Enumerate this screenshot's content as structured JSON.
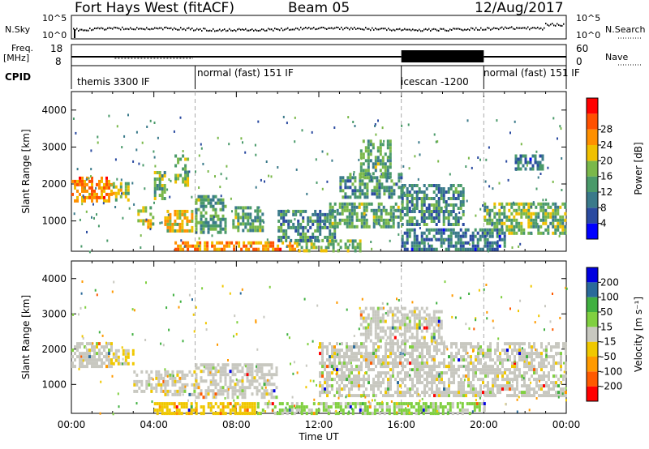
{
  "header": {
    "station": "Fort Hays West (fitACF)",
    "beam": "Beam 05",
    "date": "12/Aug/2017"
  },
  "side_labels": {
    "nsky": "N.Sky",
    "freq": "Freq.",
    "mhz": "[MHz]",
    "cpid": "CPID",
    "nsearch": "N.Search",
    "nave": "Nave"
  },
  "noise_panel": {
    "left_ticks": [
      "10^5",
      "10^0"
    ],
    "right_ticks": [
      "10^5",
      "10^0"
    ]
  },
  "freq_panel": {
    "left_ticks": [
      "18",
      "8"
    ],
    "right_ticks": [
      "60",
      "0"
    ]
  },
  "cpid_segments": [
    {
      "label": "themis 3300 IF",
      "start_hour": 0.0
    },
    {
      "label": "normal (fast) 151 IF",
      "start_hour": 6.0
    },
    {
      "label": "icescan -1200",
      "start_hour": 16.0
    },
    {
      "label": "normal (fast) 151 IF",
      "start_hour": 20.0
    }
  ],
  "time_axis": {
    "label": "Time UT",
    "ticks": [
      "00:00",
      "04:00",
      "08:00",
      "12:00",
      "16:00",
      "20:00",
      "00:00"
    ]
  },
  "colors": {
    "power": [
      "#0000ff",
      "#2a4aa0",
      "#3a7a8a",
      "#4a9a6a",
      "#7ab84a",
      "#f0c000",
      "#ff9000",
      "#ff5000",
      "#ff0000"
    ],
    "velocity": [
      "#ff0000",
      "#ff5a00",
      "#ff9a00",
      "#f0c800",
      "#c8c8c0",
      "#80d040",
      "#40b040",
      "#2a6a9a",
      "#0000e0"
    ]
  },
  "chart_data": [
    {
      "type": "heatmap",
      "title": "",
      "ylabel": "Slant Range [km]",
      "xlabel": "",
      "ylim": [
        180,
        4500
      ],
      "y_ticks": [
        "1000",
        "2000",
        "3000",
        "4000"
      ],
      "colorbar": {
        "label": "Power [dB]",
        "ticks": [
          "4",
          "8",
          "12",
          "16",
          "20",
          "24",
          "28"
        ],
        "range": [
          0,
          30
        ]
      },
      "regions": [
        {
          "t0": 0.0,
          "t1": 1.9,
          "r0": 1500,
          "r1": 2200,
          "val": 22
        },
        {
          "t0": 2.0,
          "t1": 2.8,
          "r0": 1600,
          "r1": 2050,
          "val": 16
        },
        {
          "t0": 3.2,
          "t1": 4.0,
          "r0": 800,
          "r1": 1400,
          "val": 18
        },
        {
          "t0": 4.0,
          "t1": 4.5,
          "r0": 1600,
          "r1": 2350,
          "val": 14
        },
        {
          "t0": 4.5,
          "t1": 5.8,
          "r0": 750,
          "r1": 1300,
          "val": 18
        },
        {
          "t0": 5.0,
          "t1": 5.6,
          "r0": 2000,
          "r1": 2800,
          "val": 14
        },
        {
          "t0": 6.0,
          "t1": 7.5,
          "r0": 700,
          "r1": 1700,
          "val": 12
        },
        {
          "t0": 7.8,
          "t1": 9.3,
          "r0": 700,
          "r1": 1400,
          "val": 12
        },
        {
          "t0": 5.0,
          "t1": 11.0,
          "r0": 200,
          "r1": 450,
          "val": 22
        },
        {
          "t0": 11.0,
          "t1": 14.0,
          "r0": 200,
          "r1": 500,
          "val": 14
        },
        {
          "t0": 10.0,
          "t1": 12.8,
          "r0": 500,
          "r1": 1300,
          "val": 10
        },
        {
          "t0": 12.5,
          "t1": 16.0,
          "r0": 800,
          "r1": 1500,
          "val": 12
        },
        {
          "t0": 13.0,
          "t1": 16.0,
          "r0": 1600,
          "r1": 2300,
          "val": 10
        },
        {
          "t0": 14.0,
          "t1": 15.5,
          "r0": 2200,
          "r1": 3200,
          "val": 12
        },
        {
          "t0": 16.0,
          "t1": 19.0,
          "r0": 900,
          "r1": 2000,
          "val": 10
        },
        {
          "t0": 16.0,
          "t1": 21.0,
          "r0": 200,
          "r1": 800,
          "val": 8
        },
        {
          "t0": 20.0,
          "t1": 24.0,
          "r0": 700,
          "r1": 1500,
          "val": 14
        },
        {
          "t0": 21.5,
          "t1": 22.8,
          "r0": 2400,
          "r1": 2800,
          "val": 8
        }
      ]
    },
    {
      "type": "heatmap",
      "title": "",
      "ylabel": "Slant Range [km]",
      "xlabel": "Time UT",
      "ylim": [
        180,
        4500
      ],
      "y_ticks": [
        "1000",
        "2000",
        "3000",
        "4000"
      ],
      "colorbar": {
        "label": "Velocity [m s⁻¹]",
        "ticks": [
          "200",
          "100",
          "50",
          "15",
          "-15",
          "-50",
          "-100",
          "-200"
        ],
        "range": [
          -250,
          250
        ]
      },
      "regions": [
        {
          "t0": 0.0,
          "t1": 2.0,
          "r0": 1500,
          "r1": 2200,
          "val": 0
        },
        {
          "t0": 2.0,
          "t1": 3.0,
          "r0": 1600,
          "r1": 2000,
          "val": -30
        },
        {
          "t0": 3.0,
          "t1": 4.5,
          "r0": 800,
          "r1": 1400,
          "val": 0
        },
        {
          "t0": 4.5,
          "t1": 6.0,
          "r0": 700,
          "r1": 1400,
          "val": 0
        },
        {
          "t0": 4.0,
          "t1": 9.0,
          "r0": 200,
          "r1": 500,
          "val": -60
        },
        {
          "t0": 6.0,
          "t1": 10.0,
          "r0": 600,
          "r1": 1600,
          "val": 0
        },
        {
          "t0": 9.0,
          "t1": 20.0,
          "r0": 200,
          "r1": 500,
          "val": 40
        },
        {
          "t0": 12.0,
          "t1": 24.0,
          "r0": 700,
          "r1": 2200,
          "val": 0
        },
        {
          "t0": 14.0,
          "t1": 18.0,
          "r0": 2200,
          "r1": 3200,
          "val": 0
        }
      ]
    }
  ]
}
